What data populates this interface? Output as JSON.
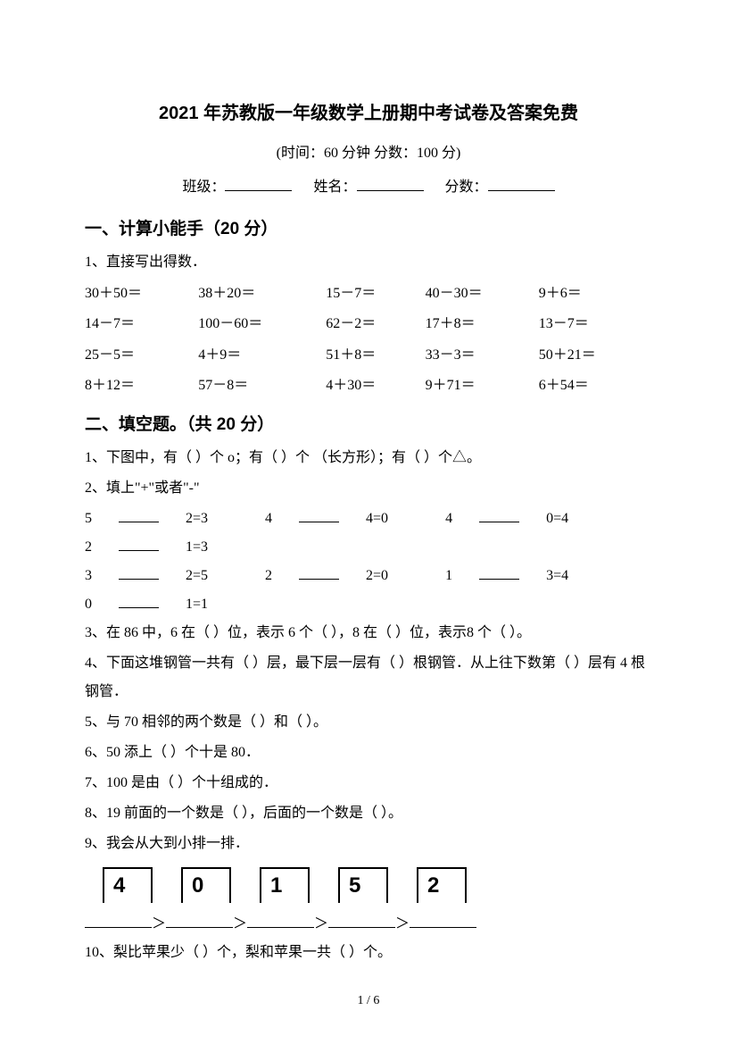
{
  "title": "2021 年苏教版一年级数学上册期中考试卷及答案免费",
  "subtitle": "(时间：60 分钟    分数：100 分)",
  "info": {
    "class_label": "班级：",
    "name_label": "姓名：",
    "score_label": "分数："
  },
  "section1": {
    "header": "一、计算小能手（20 分）",
    "q1_label": "1、直接写出得数．",
    "rows": [
      [
        "30＋50＝",
        "38＋20＝",
        "15－7＝",
        "40－30＝",
        "9＋6＝"
      ],
      [
        "14－7＝",
        "100－60＝",
        "62－2＝",
        "17＋8＝",
        "13－7＝"
      ],
      [
        "25－5＝",
        "4＋9＝",
        "51＋8＝",
        "33－3＝",
        "50＋21＝"
      ],
      [
        "8＋12＝",
        "57－8＝",
        "4＋30＝",
        "9＋71＝",
        "6＋54＝"
      ]
    ]
  },
  "section2": {
    "header": "二、填空题。（共 20 分）",
    "q1": "1、下图中，有（      ）个 o；有（      ）个 （长方形）；有（      ）个△。",
    "q2_label": "2、填上\"+\"或者\"-\"",
    "q2_rows": [
      [
        {
          "a": "5",
          "b": "2=3"
        },
        {
          "a": "4",
          "b": "4=0"
        },
        {
          "a": "4",
          "b": "0=4"
        },
        {
          "a": "2",
          "b": "1=3"
        }
      ],
      [
        {
          "a": "3",
          "b": "2=5"
        },
        {
          "a": "2",
          "b": "2=0"
        },
        {
          "a": "1",
          "b": "3=4"
        },
        {
          "a": "0",
          "b": "1=1"
        }
      ]
    ],
    "q3": "3、在 86 中，6 在（      ）位，表示 6 个（      ），8 在（      ）位，表示8 个（      ）。",
    "q4": "4、下面这堆钢管一共有（      ）层，最下层一层有（      ）根钢管．从上往下数第（      ）层有 4 根钢管．",
    "q5": "5、与 70 相邻的两个数是（      ）和（      ）。",
    "q6": "6、50 添上（      ）个十是 80．",
    "q7": "7、100 是由（      ）个十组成的．",
    "q8": "8、19 前面的一个数是（      ），后面的一个数是（      ）。",
    "q9_label": "9、我会从大到小排一排．",
    "q9_numbers": [
      "4",
      "0",
      "1",
      "5",
      "2"
    ],
    "q9_comparison_parts": [
      "＞",
      "＞",
      "＞",
      "＞"
    ],
    "q10": "10、梨比苹果少（      ）个，梨和苹果一共（      ）个。"
  },
  "footer": "1 / 6"
}
